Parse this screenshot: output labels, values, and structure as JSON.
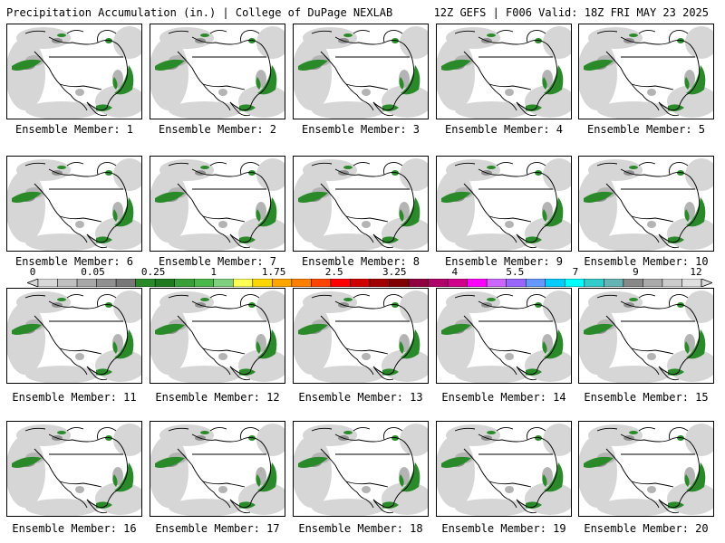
{
  "header": {
    "left": "Precipitation Accumulation (in.) | College of DuPage NEXLAB",
    "right": "12Z GEFS | F006 Valid: 18Z FRI MAY 23 2025"
  },
  "panels": [
    {
      "caption": "Ensemble Member: 1"
    },
    {
      "caption": "Ensemble Member: 2"
    },
    {
      "caption": "Ensemble Member: 3"
    },
    {
      "caption": "Ensemble Member: 4"
    },
    {
      "caption": "Ensemble Member: 5"
    },
    {
      "caption": "Ensemble Member: 6"
    },
    {
      "caption": "Ensemble Member: 7"
    },
    {
      "caption": "Ensemble Member: 8"
    },
    {
      "caption": "Ensemble Member: 9"
    },
    {
      "caption": "Ensemble Member: 10"
    },
    {
      "caption": "Ensemble Member: 11"
    },
    {
      "caption": "Ensemble Member: 12"
    },
    {
      "caption": "Ensemble Member: 13"
    },
    {
      "caption": "Ensemble Member: 14"
    },
    {
      "caption": "Ensemble Member: 15"
    },
    {
      "caption": "Ensemble Member: 16"
    },
    {
      "caption": "Ensemble Member: 17"
    },
    {
      "caption": "Ensemble Member: 18"
    },
    {
      "caption": "Ensemble Member: 19"
    },
    {
      "caption": "Ensemble Member: 20"
    }
  ],
  "colorbar": {
    "labels": [
      "0",
      "0.05",
      "0.25",
      "1",
      "1.75",
      "2.5",
      "3.25",
      "4",
      "5.5",
      "7",
      "9",
      "12"
    ],
    "colors": [
      "#d8d8d8",
      "#c0c0c0",
      "#a8a8a8",
      "#909090",
      "#787878",
      "#2a8a2a",
      "#1f7a1f",
      "#39a039",
      "#4cb84c",
      "#7fd07f",
      "#ffff55",
      "#ffd700",
      "#ffa500",
      "#ff7f00",
      "#ff4500",
      "#ff0000",
      "#d00000",
      "#a00000",
      "#800000",
      "#900040",
      "#b0006a",
      "#d0008c",
      "#ff00ff",
      "#cc66ff",
      "#9966ff",
      "#6699ff",
      "#00ccff",
      "#00ffff",
      "#33cccc",
      "#66b3b3",
      "#888888",
      "#aaaaaa",
      "#cccccc",
      "#e0e0e0"
    ]
  }
}
